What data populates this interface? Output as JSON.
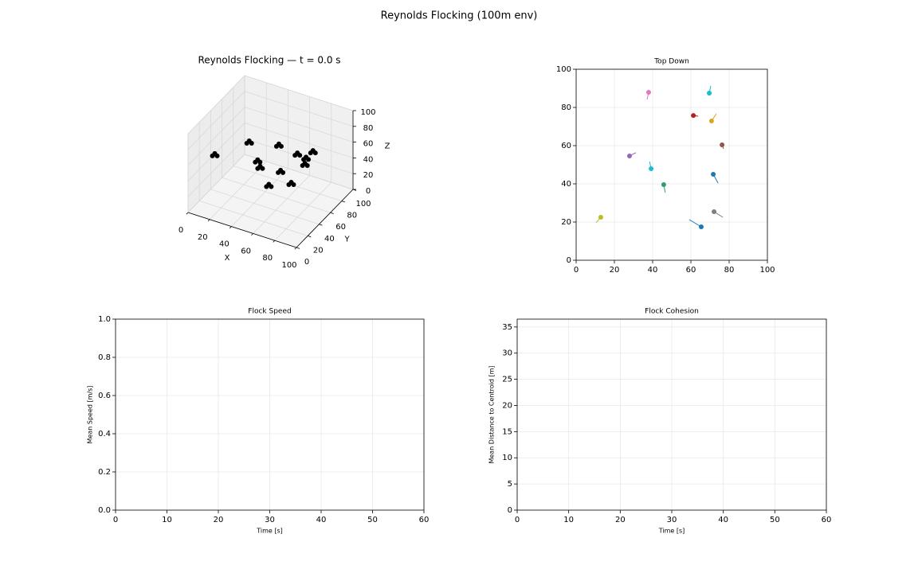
{
  "title": "Reynolds Flocking (100m env)",
  "chart_data": [
    {
      "type": "scatter3d",
      "title": "Reynolds Flocking — t = 0.0 s",
      "x": [
        37.9,
        69.6,
        61.3,
        70.8,
        76.3,
        27.9,
        39.2,
        71.7,
        45.8,
        12.9,
        72.1,
        65.4
      ],
      "y": [
        87.9,
        87.5,
        75.8,
        72.9,
        60.4,
        54.6,
        47.9,
        45.0,
        39.6,
        22.5,
        25.4,
        17.5
      ],
      "z": [
        37,
        43,
        45,
        46,
        50,
        61,
        47,
        35,
        48,
        62,
        65,
        50
      ],
      "color": "#000000",
      "xlim": [
        0,
        100
      ],
      "ylim": [
        0,
        100
      ],
      "zlim": [
        0,
        100
      ],
      "xticks": [
        0,
        20,
        40,
        60,
        80,
        100
      ],
      "yticks": [
        0,
        20,
        40,
        60,
        80,
        100
      ],
      "zticks": [
        0,
        20,
        40,
        60,
        80,
        100
      ],
      "xlabel": "X",
      "ylabel": "Y",
      "zlabel": "Z"
    },
    {
      "type": "scatter",
      "title": "Top Down",
      "x": [
        37.9,
        69.6,
        61.3,
        70.8,
        76.3,
        27.9,
        39.2,
        71.7,
        45.8,
        12.9,
        72.1,
        65.4
      ],
      "y": [
        87.9,
        87.5,
        75.8,
        72.9,
        60.4,
        54.6,
        47.9,
        45.0,
        39.6,
        22.5,
        25.4,
        17.5
      ],
      "dx": [
        -0.8,
        0.8,
        2.5,
        2.5,
        0.8,
        3.3,
        -0.8,
        2.5,
        0.8,
        -2.5,
        4.6,
        -6.3
      ],
      "dy": [
        -3.8,
        3.8,
        -0.4,
        3.8,
        -2.1,
        1.7,
        3.8,
        -4.6,
        -4.2,
        -2.9,
        -2.9,
        3.8
      ],
      "colors": [
        "#e377c2",
        "#17becf",
        "#b22222",
        "#daa520",
        "#8c564b",
        "#9467bd",
        "#17becf",
        "#1f77b4",
        "#2e9e6e",
        "#bcbd22",
        "#7f7f7f",
        "#1f77b4"
      ],
      "xlim": [
        0,
        100
      ],
      "ylim": [
        0,
        100
      ],
      "xticks": [
        0,
        20,
        40,
        60,
        80,
        100
      ],
      "yticks": [
        0,
        20,
        40,
        60,
        80,
        100
      ],
      "grid": true
    },
    {
      "type": "line",
      "title": "Flock Speed",
      "xlabel": "Time [s]",
      "ylabel": "Mean Speed [m/s]",
      "xlim": [
        0,
        60
      ],
      "ylim": [
        0,
        1
      ],
      "xticks": [
        0,
        10,
        20,
        30,
        40,
        50,
        60
      ],
      "yticks": [
        {
          "value": 0,
          "label": "0.0"
        },
        0.2,
        0.4,
        0.6,
        0.8,
        {
          "value": 1,
          "label": "1.0"
        }
      ],
      "grid": true
    },
    {
      "type": "line",
      "title": "Flock Cohesion",
      "xlabel": "Time [s]",
      "ylabel": "Mean Distance to Centroid [m]",
      "xlim": [
        0,
        60
      ],
      "ylim": [
        0,
        36.5
      ],
      "xticks": [
        0,
        10,
        20,
        30,
        40,
        50,
        60
      ],
      "yticks": [
        0,
        5,
        10,
        15,
        20,
        25,
        30,
        35
      ],
      "grid": true
    }
  ]
}
